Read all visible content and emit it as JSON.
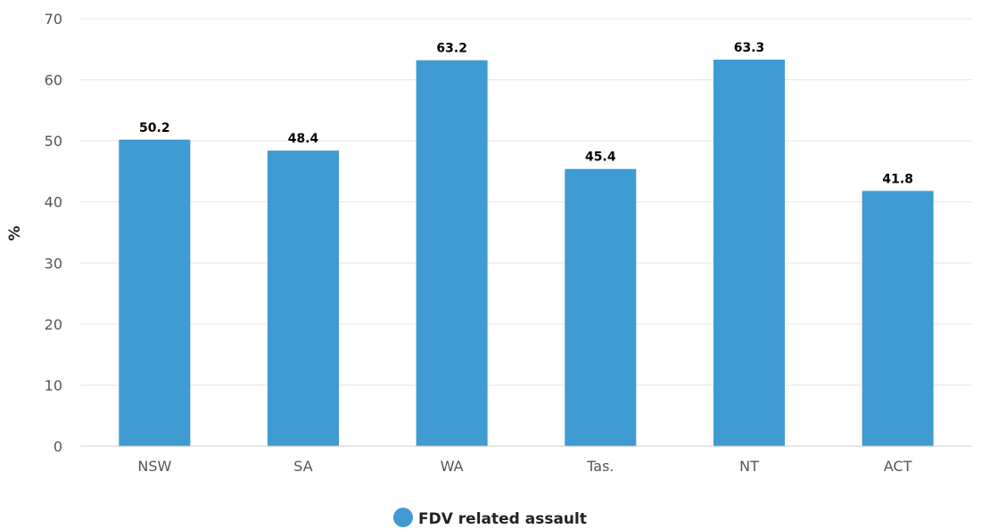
{
  "chart_data": {
    "type": "bar",
    "categories": [
      "NSW",
      "SA",
      "WA",
      "Tas.",
      "NT",
      "ACT"
    ],
    "series": [
      {
        "name": "FDV related assault",
        "values": [
          50.2,
          48.4,
          63.2,
          45.4,
          63.3,
          41.8
        ],
        "color": "#3f9bd1"
      }
    ],
    "ylabel": "%",
    "xlabel": "",
    "ylim": [
      0,
      70
    ],
    "yticks": [
      0,
      10,
      20,
      30,
      40,
      50,
      60,
      70
    ],
    "grid": true,
    "legend_position": "bottom-center",
    "data_labels": true
  }
}
